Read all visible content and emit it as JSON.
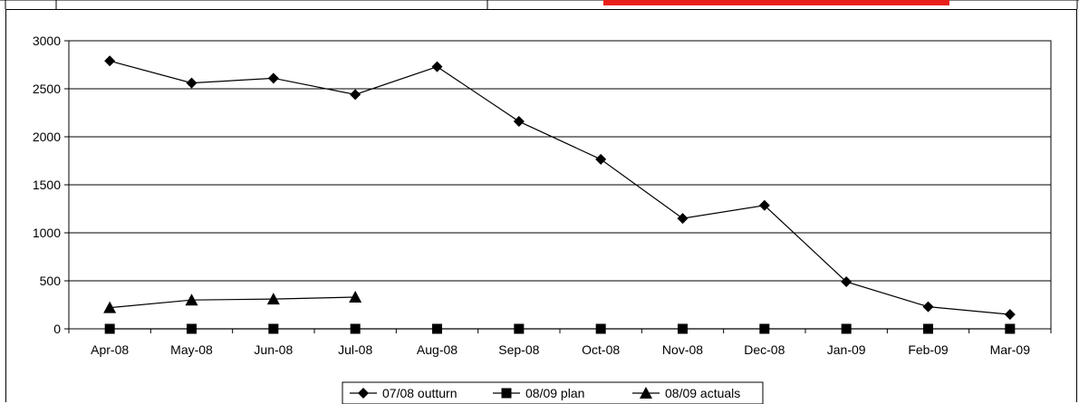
{
  "chart_data": {
    "type": "line",
    "categories": [
      "Apr-08",
      "May-08",
      "Jun-08",
      "Jul-08",
      "Aug-08",
      "Sep-08",
      "Oct-08",
      "Nov-08",
      "Dec-08",
      "Jan-09",
      "Feb-09",
      "Mar-09"
    ],
    "ylim": [
      0,
      3000
    ],
    "yticks": [
      0,
      500,
      1000,
      1500,
      2000,
      2500,
      3000
    ],
    "grid": true,
    "legend_position": "bottom",
    "series": [
      {
        "name": "07/08 outturn",
        "marker": "diamond",
        "values": [
          2790,
          2560,
          2610,
          2440,
          2730,
          2160,
          1765,
          1150,
          1285,
          490,
          230,
          150
        ]
      },
      {
        "name": "08/09 plan",
        "marker": "square",
        "values": [
          0,
          0,
          0,
          0,
          0,
          0,
          0,
          0,
          0,
          0,
          0,
          0
        ]
      },
      {
        "name": "08/09 actuals",
        "marker": "triangle",
        "values": [
          220,
          300,
          310,
          330,
          null,
          null,
          null,
          null,
          null,
          null,
          null,
          null
        ]
      }
    ]
  },
  "colors": {
    "line": "#000000",
    "grid": "#000000",
    "top_accent": "#e8201c"
  }
}
